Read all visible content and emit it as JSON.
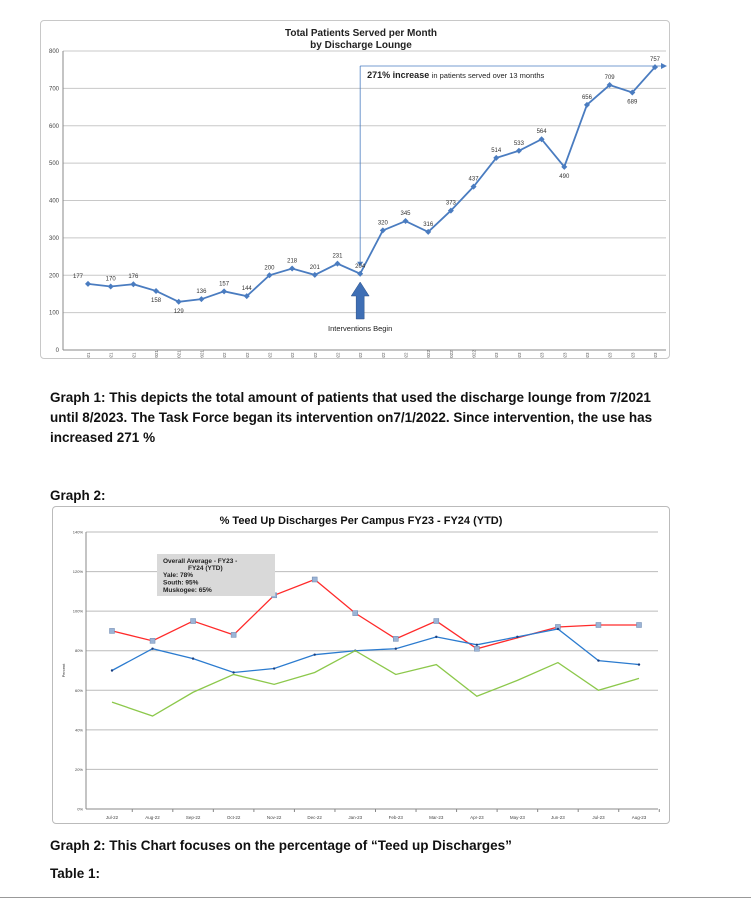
{
  "chart_data": [
    {
      "type": "line",
      "title": "Total Patients Served per Month",
      "subtitle": "by Discharge Lounge",
      "xlabel": "",
      "ylabel": "",
      "ylim": [
        0,
        800
      ],
      "yticks": [
        0,
        100,
        200,
        300,
        400,
        500,
        600,
        700,
        800
      ],
      "grid": true,
      "categories": [
        "7/1/2021",
        "8/1/2021",
        "9/1/2021",
        "10/1/2021",
        "11/1/2021",
        "12/1/2021",
        "1/1/2022",
        "2/1/2022",
        "3/1/2022",
        "4/1/2022",
        "5/1/2022",
        "6/1/2022",
        "7/1/2022",
        "8/1/2022",
        "9/1/2022",
        "10/1/2022",
        "11/1/2022",
        "12/1/2022",
        "1/1/2023",
        "2/1/2023",
        "3/1/2023",
        "4/1/2023",
        "5/1/2023",
        "6/1/2023",
        "7/1/2023",
        "8/1/2023"
      ],
      "values": [
        177,
        170,
        176,
        158,
        129,
        136,
        157,
        144,
        200,
        218,
        201,
        231,
        204,
        320,
        345,
        316,
        373,
        437,
        514,
        533,
        564,
        490,
        656,
        709,
        689,
        757
      ],
      "color": "#4a7cc0",
      "annotations": {
        "increase_bold": "271% increase",
        "increase_text": "in patients served over 13 months",
        "interventions": "Interventions Begin",
        "intervention_index": 12
      }
    },
    {
      "type": "line",
      "title": "% Teed Up Discharges Per Campus FY23 - FY24 (YTD)",
      "xlabel": "",
      "ylabel": "Percent",
      "ylim": [
        0,
        140
      ],
      "yticks": [
        "0%",
        "20%",
        "40%",
        "60%",
        "80%",
        "100%",
        "120%",
        "140%"
      ],
      "grid": true,
      "categories": [
        "Jul-22",
        "Aug-22",
        "Sep-22",
        "Oct-22",
        "Nov-22",
        "Dec-22",
        "Jan-23",
        "Feb-23",
        "Mar-23",
        "Apr-23",
        "May-23",
        "Jun-23",
        "Jul-23",
        "Aug-23"
      ],
      "series": [
        {
          "name": "South",
          "color": "#ff2a2a",
          "values": [
            90,
            85,
            95,
            88,
            108,
            116,
            99,
            86,
            95,
            81,
            null,
            92,
            93,
            93
          ]
        },
        {
          "name": "Yale",
          "color": "#2b7bcf",
          "values": [
            70,
            81,
            76,
            69,
            71,
            78,
            80,
            81,
            87,
            83,
            87,
            91,
            75,
            73
          ]
        },
        {
          "name": "Muskogee",
          "color": "#8cc84b",
          "values": [
            54,
            47,
            59,
            68,
            63,
            69,
            80,
            68,
            73,
            57,
            65,
            74,
            60,
            66
          ]
        }
      ],
      "annotation": {
        "line1": "Overall Average - FY23 -",
        "line2": "FY24 (YTD)",
        "line3": "Yale: 78%",
        "line4": "South: 95%",
        "line5": "Muskogee: 65%"
      }
    }
  ],
  "doc": {
    "caption1": "Graph 1: This depicts the total amount of patients that used the discharge lounge from 7/2021  until 8/2023.  The Task Force began its intervention on7/1/2022.  Since intervention, the use has increased 271 %",
    "graph2_heading": "Graph 2:",
    "caption2": "Graph 2: This Chart focuses on the percentage of “Teed up Discharges”",
    "table1_heading": "Table 1:"
  }
}
